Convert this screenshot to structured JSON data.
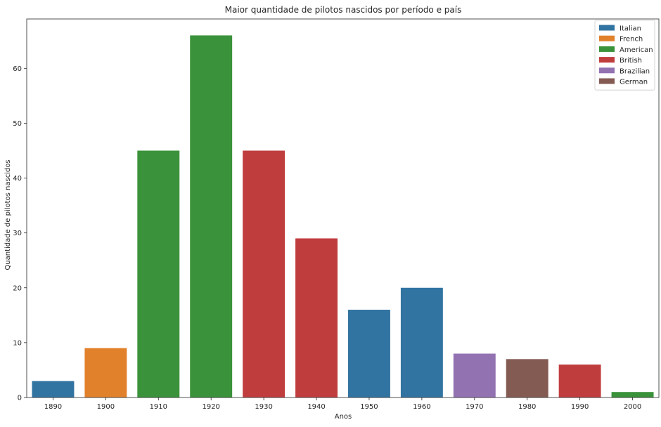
{
  "chart_data": {
    "type": "bar",
    "title": "Maior quantidade de pilotos nascidos por período e país",
    "xlabel": "Anos",
    "ylabel": "Quantidade de pilotos nascidos",
    "ylim": [
      0,
      69
    ],
    "yticks": [
      0,
      10,
      20,
      30,
      40,
      50,
      60
    ],
    "grid": false,
    "legend_position": "top-right",
    "categories": [
      "1890",
      "1900",
      "1910",
      "1920",
      "1930",
      "1940",
      "1950",
      "1960",
      "1970",
      "1980",
      "1990",
      "2000"
    ],
    "values": [
      3,
      9,
      45,
      66,
      45,
      29,
      16,
      20,
      8,
      7,
      6,
      1
    ],
    "bar_series": [
      "Italian",
      "French",
      "American",
      "American",
      "British",
      "British",
      "Italian",
      "Italian",
      "Brazilian",
      "German",
      "British",
      "American"
    ],
    "series": [
      {
        "name": "Italian",
        "color": "#3274a1"
      },
      {
        "name": "French",
        "color": "#e1812c"
      },
      {
        "name": "American",
        "color": "#3a923a"
      },
      {
        "name": "British",
        "color": "#c03d3e"
      },
      {
        "name": "Brazilian",
        "color": "#9372b2"
      },
      {
        "name": "German",
        "color": "#845b53"
      }
    ]
  }
}
